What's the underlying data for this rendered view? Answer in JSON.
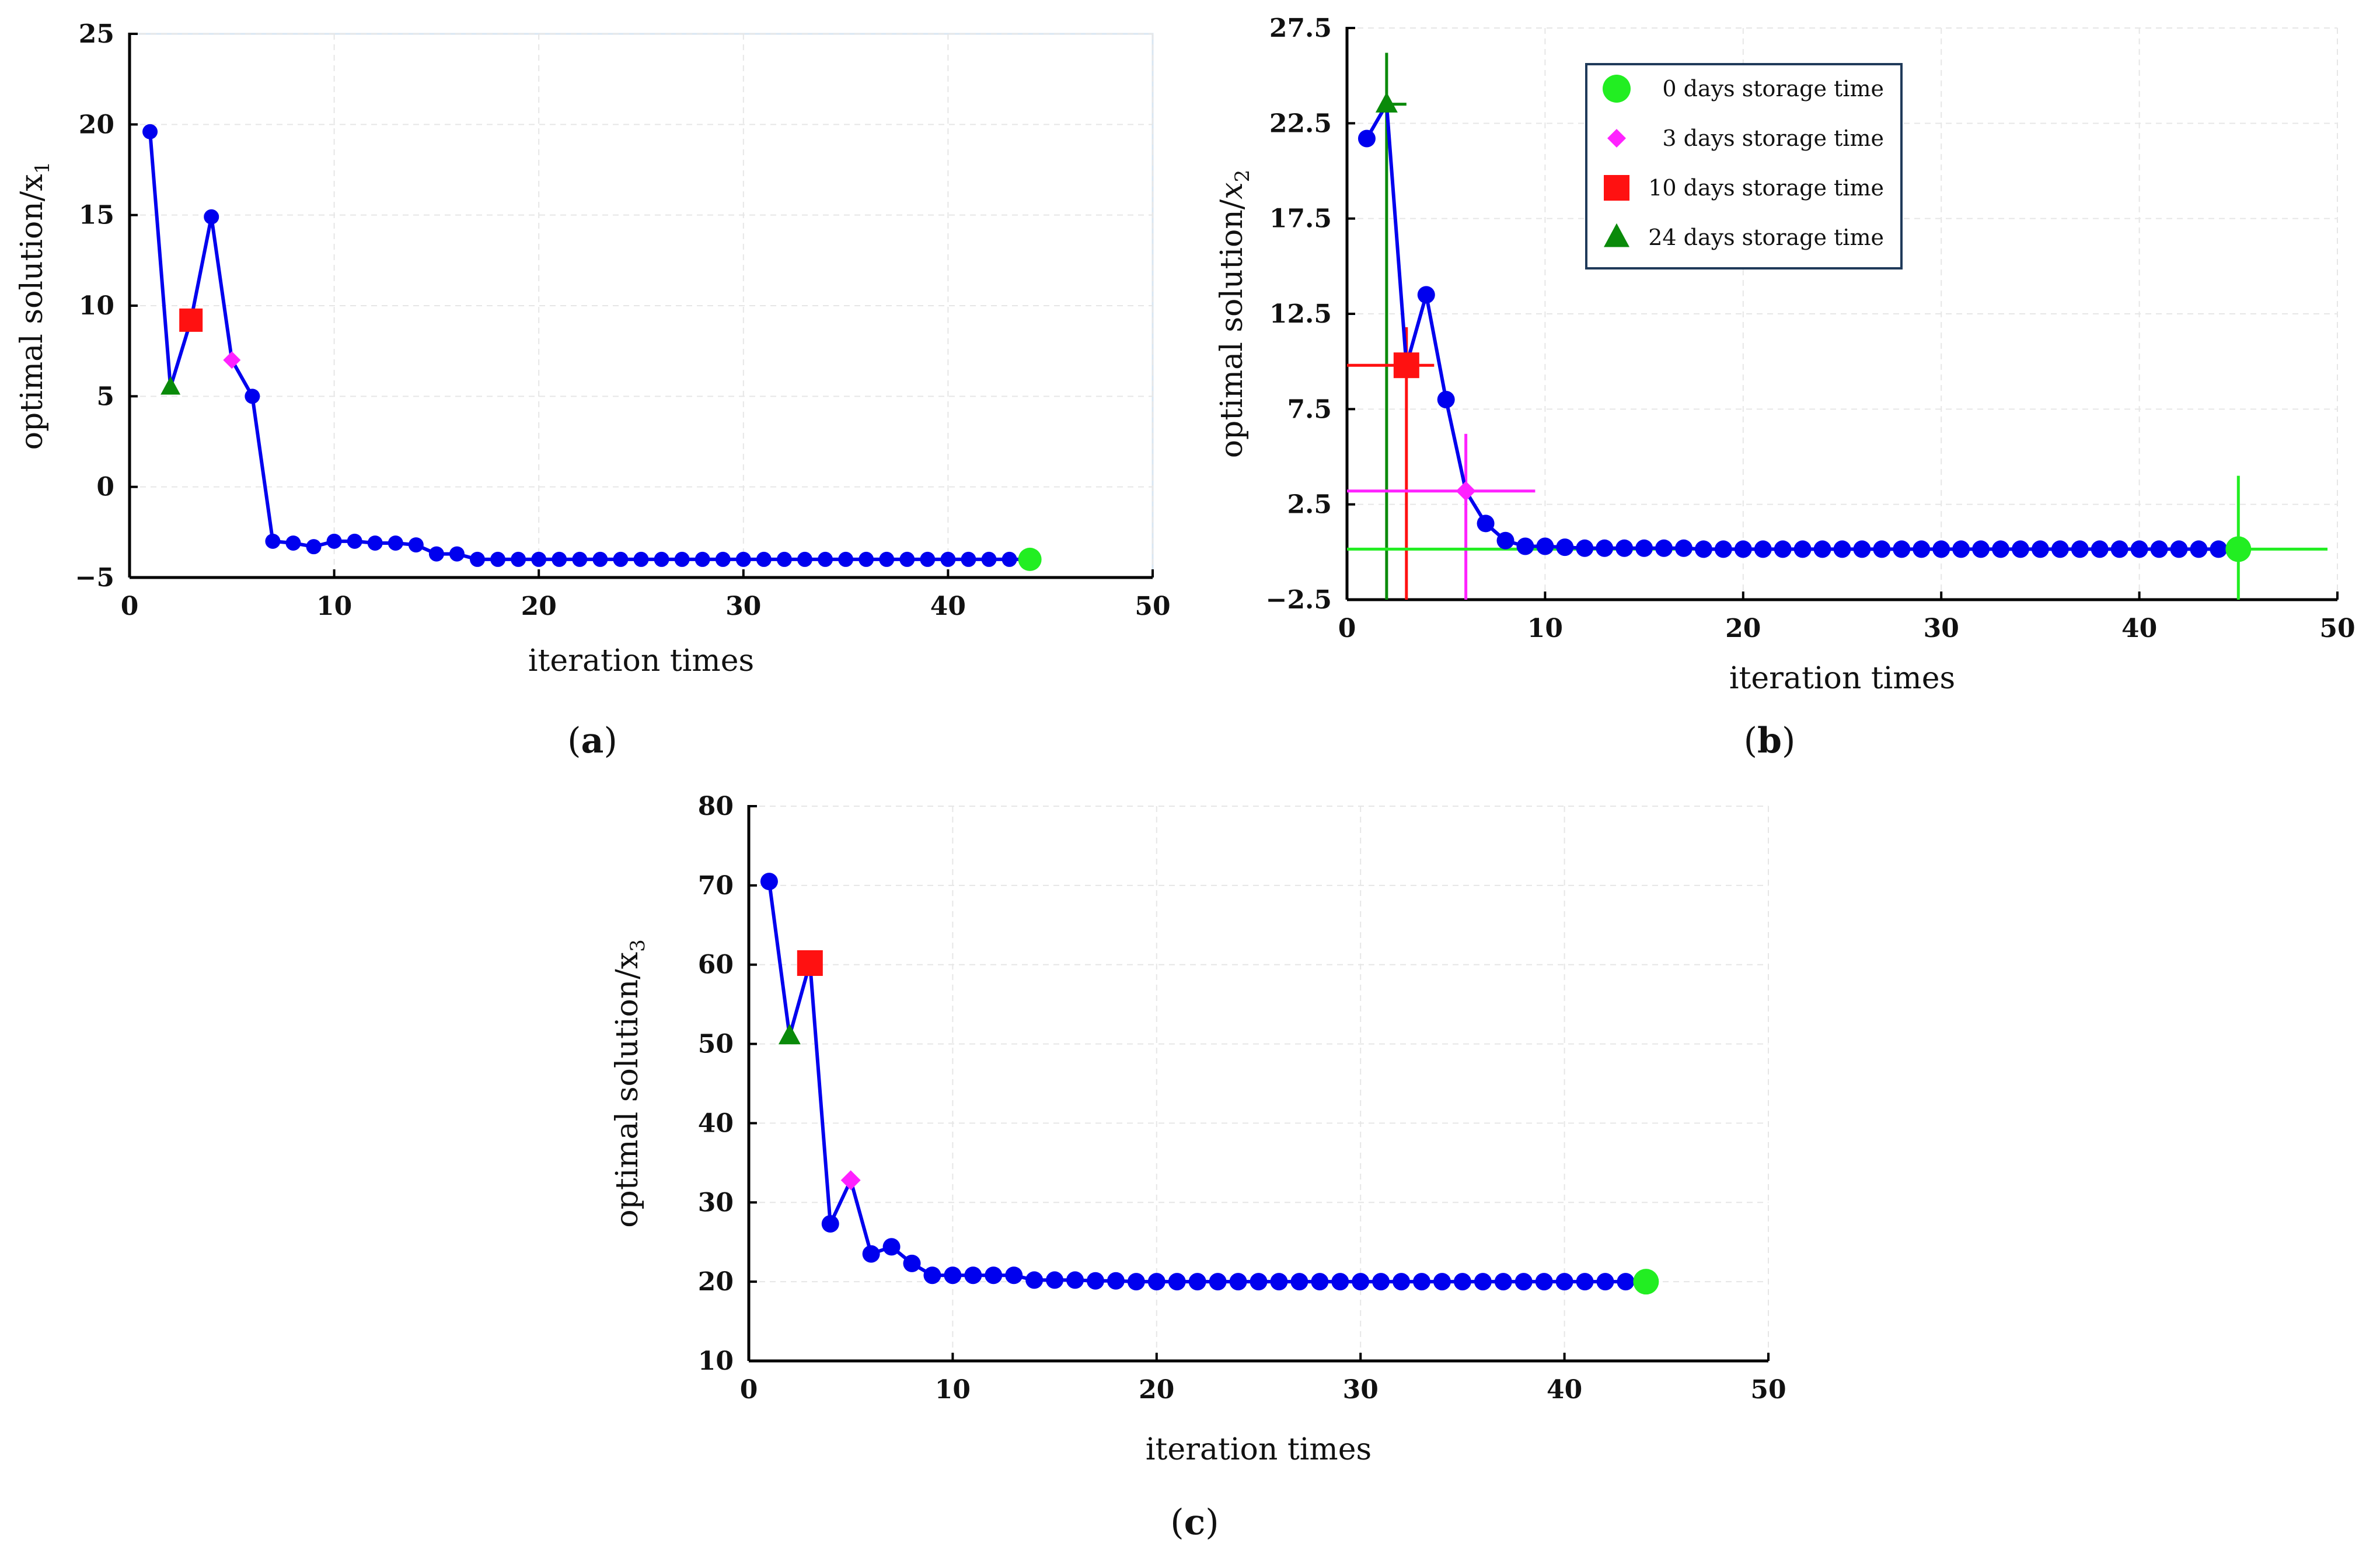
{
  "figure": {
    "colors": {
      "series": "#0000ee",
      "green_circle": "#22ee22",
      "magenta_diamond": "#ff22ff",
      "red_square": "#ff1111",
      "green_triangle": "#0a8a0a",
      "legend_border": "#1f3a5a"
    }
  },
  "chart_data": [
    {
      "id": "a",
      "type": "line",
      "caption_open": "(",
      "caption_letter": "a",
      "caption_close": ")",
      "xlabel": "iteration times",
      "ylabel_main": "optimal solution/x",
      "ylabel_sub": "1",
      "xlim": [
        0,
        50
      ],
      "ylim": [
        -5,
        25
      ],
      "xticks": [
        0,
        10,
        20,
        30,
        40,
        50
      ],
      "yticks": [
        -5,
        0,
        5,
        10,
        15,
        20,
        25
      ],
      "ytick_labels": [
        "−5",
        "0",
        "5",
        "10",
        "15",
        "20",
        "25"
      ],
      "series": {
        "name": "optimal solution x1",
        "x": [
          1,
          2,
          3,
          4,
          5,
          6,
          7,
          8,
          9,
          10,
          11,
          12,
          13,
          14,
          15,
          16,
          17,
          18,
          19,
          20,
          21,
          22,
          23,
          24,
          25,
          26,
          27,
          28,
          29,
          30,
          31,
          32,
          33,
          34,
          35,
          36,
          37,
          38,
          39,
          40,
          41,
          42,
          43,
          44
        ],
        "y": [
          19.6,
          5.5,
          9.2,
          14.9,
          7.0,
          5.0,
          -3.0,
          -3.1,
          -3.3,
          -3.0,
          -3.0,
          -3.1,
          -3.1,
          -3.2,
          -3.7,
          -3.7,
          -4.0,
          -4.0,
          -4.0,
          -4.0,
          -4.0,
          -4.0,
          -4.0,
          -4.0,
          -4.0,
          -4.0,
          -4.0,
          -4.0,
          -4.0,
          -4.0,
          -4.0,
          -4.0,
          -4.0,
          -4.0,
          -4.0,
          -4.0,
          -4.0,
          -4.0,
          -4.0,
          -4.0,
          -4.0,
          -4.0,
          -4.0,
          -4.0
        ]
      },
      "markers": [
        {
          "name": "24 days storage time",
          "shape": "triangle",
          "x": 2,
          "y": 5.5
        },
        {
          "name": "10 days storage time",
          "shape": "square",
          "x": 3,
          "y": 9.2
        },
        {
          "name": "3 days storage time",
          "shape": "diamond",
          "x": 5,
          "y": 7.0
        },
        {
          "name": "0 days storage time",
          "shape": "circle",
          "x": 44,
          "y": -4.0
        }
      ]
    },
    {
      "id": "b",
      "type": "line",
      "caption_open": "(",
      "caption_letter": "b",
      "caption_close": ")",
      "xlabel": "iteration times",
      "ylabel_main": "optimal solution/",
      "ylabel_var": "x",
      "ylabel_sub": "2",
      "xlim": [
        0,
        50
      ],
      "ylim": [
        -2.5,
        27.5
      ],
      "xticks": [
        0,
        10,
        20,
        30,
        40,
        50
      ],
      "yticks": [
        -2.5,
        2.5,
        7.5,
        12.5,
        17.5,
        22.5,
        27.5
      ],
      "ytick_labels": [
        "−2.5",
        "2.5",
        "7.5",
        "12.5",
        "17.5",
        "22.5",
        "27.5"
      ],
      "series": {
        "name": "optimal solution x2",
        "x": [
          1,
          2,
          3,
          4,
          5,
          6,
          7,
          8,
          9,
          10,
          11,
          12,
          13,
          14,
          15,
          16,
          17,
          18,
          19,
          20,
          21,
          22,
          23,
          24,
          25,
          26,
          27,
          28,
          29,
          30,
          31,
          32,
          33,
          34,
          35,
          36,
          37,
          38,
          39,
          40,
          41,
          42,
          43,
          44,
          45
        ],
        "y": [
          21.7,
          23.5,
          9.8,
          13.5,
          8.0,
          3.2,
          1.5,
          0.6,
          0.3,
          0.3,
          0.25,
          0.2,
          0.2,
          0.2,
          0.2,
          0.2,
          0.2,
          0.15,
          0.15,
          0.15,
          0.15,
          0.15,
          0.15,
          0.15,
          0.15,
          0.15,
          0.15,
          0.15,
          0.15,
          0.15,
          0.15,
          0.15,
          0.15,
          0.15,
          0.15,
          0.15,
          0.15,
          0.15,
          0.15,
          0.15,
          0.15,
          0.15,
          0.15,
          0.15,
          0.15
        ]
      },
      "markers": [
        {
          "name": "24 days storage time",
          "shape": "triangle",
          "x": 2,
          "y": 23.5,
          "crosshair": {
            "x": [
              1.8,
              3.0
            ],
            "y": [
              -2.5,
              26.2
            ]
          }
        },
        {
          "name": "10 days storage time",
          "shape": "square",
          "x": 3,
          "y": 9.8,
          "crosshair": {
            "x": [
              0,
              4.4
            ],
            "y": [
              -2.5,
              11.8
            ]
          }
        },
        {
          "name": "3 days storage time",
          "shape": "diamond",
          "x": 6,
          "y": 3.2,
          "crosshair": {
            "x": [
              0,
              9.5
            ],
            "y": [
              -2.5,
              6.2
            ]
          }
        },
        {
          "name": "0 days storage time",
          "shape": "circle",
          "x": 45,
          "y": 0.15,
          "crosshair": {
            "x": [
              0,
              49.5
            ],
            "y": [
              -2.5,
              4.0
            ]
          }
        }
      ],
      "legend": {
        "placement": "top-center",
        "entries": [
          {
            "label": "0 days storage time",
            "shape": "circle"
          },
          {
            "label": "3 days storage time",
            "shape": "diamond"
          },
          {
            "label": "10 days storage time",
            "shape": "square"
          },
          {
            "label": "24 days storage time",
            "shape": "triangle"
          }
        ]
      }
    },
    {
      "id": "c",
      "type": "line",
      "caption_open": "(",
      "caption_letter": "c",
      "caption_close": ")",
      "xlabel": "iteration times",
      "ylabel_main": "optimal solution/x",
      "ylabel_sub": "3",
      "xlim": [
        0,
        50
      ],
      "ylim": [
        10,
        80
      ],
      "xticks": [
        0,
        10,
        20,
        30,
        40,
        50
      ],
      "yticks": [
        10,
        20,
        30,
        40,
        50,
        60,
        70,
        80
      ],
      "ytick_labels": [
        "10",
        "20",
        "30",
        "40",
        "50",
        "60",
        "70",
        "80"
      ],
      "series": {
        "name": "optimal solution x3",
        "x": [
          1,
          2,
          3,
          4,
          5,
          6,
          7,
          8,
          9,
          10,
          11,
          12,
          13,
          14,
          15,
          16,
          17,
          18,
          19,
          20,
          21,
          22,
          23,
          24,
          25,
          26,
          27,
          28,
          29,
          30,
          31,
          32,
          33,
          34,
          35,
          36,
          37,
          38,
          39,
          40,
          41,
          42,
          43,
          44
        ],
        "y": [
          70.5,
          51.0,
          60.2,
          27.3,
          32.8,
          23.5,
          24.4,
          22.3,
          20.8,
          20.8,
          20.8,
          20.8,
          20.8,
          20.2,
          20.2,
          20.2,
          20.1,
          20.1,
          20.0,
          20.0,
          20.0,
          20.0,
          20.0,
          20.0,
          20.0,
          20.0,
          20.0,
          20.0,
          20.0,
          20.0,
          20.0,
          20.0,
          20.0,
          20.0,
          20.0,
          20.0,
          20.0,
          20.0,
          20.0,
          20.0,
          20.0,
          20.0,
          20.0,
          20.0
        ]
      },
      "markers": [
        {
          "name": "24 days storage time",
          "shape": "triangle",
          "x": 2,
          "y": 51.0
        },
        {
          "name": "10 days storage time",
          "shape": "square",
          "x": 3,
          "y": 60.2
        },
        {
          "name": "3 days storage time",
          "shape": "diamond",
          "x": 5,
          "y": 32.8
        },
        {
          "name": "0 days storage time",
          "shape": "circle",
          "x": 44,
          "y": 20.0
        }
      ]
    }
  ]
}
